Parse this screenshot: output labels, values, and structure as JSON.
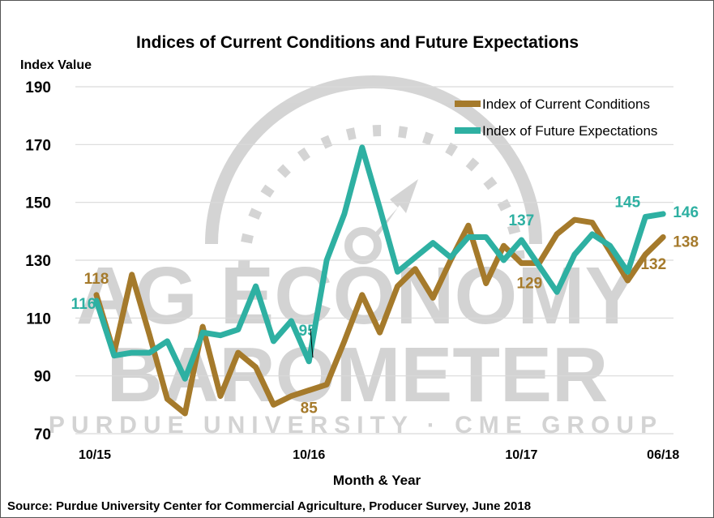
{
  "chart_data": {
    "type": "line",
    "title": "Indices of Current Conditions and Future Expectations",
    "ylabel": "Index Value",
    "xlabel": "Month & Year",
    "source": "Source: Purdue University Center for Commercial Agriculture, Producer Survey, June 2018",
    "ylim": [
      70,
      190
    ],
    "yticks": [
      70,
      90,
      110,
      130,
      150,
      170,
      190
    ],
    "grid": true,
    "legend_position": "top-right",
    "x_tick_labels": [
      {
        "index": 0,
        "label": "10/15"
      },
      {
        "index": 12,
        "label": "10/16"
      },
      {
        "index": 24,
        "label": "10/17"
      },
      {
        "index": 32,
        "label": "06/18"
      }
    ],
    "x_start": "10/15",
    "x_end": "06/18",
    "series": [
      {
        "name": "Index of Current Conditions",
        "color": "#A57A2B",
        "values": [
          118,
          98,
          125,
          104,
          82,
          77,
          107,
          83,
          98,
          93,
          80,
          83,
          85,
          87,
          102,
          118,
          105,
          121,
          127,
          117,
          130,
          142,
          122,
          135,
          129,
          129,
          139,
          144,
          143,
          133,
          123,
          132,
          138
        ],
        "data_labels": [
          {
            "index": 0,
            "text": "118"
          },
          {
            "index": 12,
            "text": "85"
          },
          {
            "index": 24,
            "text": "129"
          },
          {
            "index": 31,
            "text": "132"
          },
          {
            "index": 32,
            "text": "138"
          }
        ]
      },
      {
        "name": "Index of Future Expectations",
        "color": "#2EB0A2",
        "values": [
          116,
          97,
          98,
          98,
          102,
          89,
          105,
          104,
          106,
          121,
          102,
          109,
          95,
          130,
          146,
          169,
          148,
          126,
          131,
          136,
          131,
          138,
          138,
          130,
          137,
          128,
          119,
          132,
          139,
          135,
          126,
          145,
          146
        ],
        "data_labels": [
          {
            "index": 0,
            "text": "116"
          },
          {
            "index": 12,
            "text": "95"
          },
          {
            "index": 24,
            "text": "137"
          },
          {
            "index": 31,
            "text": "145"
          },
          {
            "index": 32,
            "text": "146"
          }
        ]
      }
    ]
  },
  "watermark": {
    "line1": "AG ECONOMY",
    "line2": "BAROMETER",
    "line3": "PURDUE UNIVERSITY · CME GROUP"
  }
}
